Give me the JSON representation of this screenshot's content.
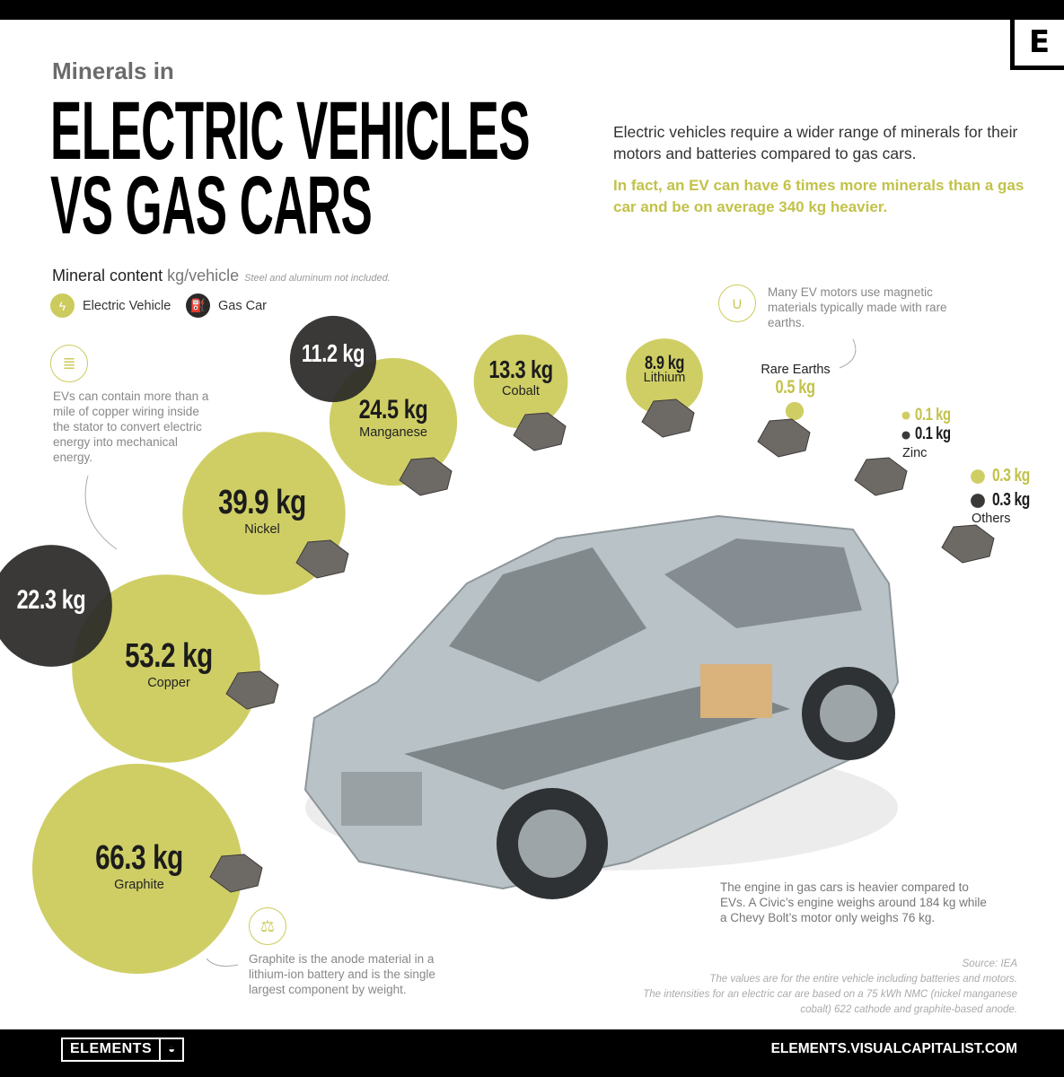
{
  "header": {
    "kicker": "Minerals in",
    "title_line1": "ELECTRIC VEHICLES",
    "title_line2": "VS GAS CARS",
    "logo": "E"
  },
  "intro": {
    "text": "Electric vehicles require a wider range of minerals for their motors and batteries compared to gas cars.",
    "highlight": "In fact, an EV can have 6 times more minerals than a gas car and be on average 340 kg heavier."
  },
  "legend": {
    "title": "Mineral content",
    "unit": "kg/vehicle",
    "note": "Steel and aluminum not included.",
    "ev_label": "Electric Vehicle",
    "gas_label": "Gas Car",
    "ev_icon": "lightning-icon",
    "gas_icon": "fuel-pump-icon"
  },
  "notes": {
    "copper": "EVs can contain more than a mile of copper wiring inside the stator to convert electric energy into mechanical energy.",
    "rare_earths": "Many EV motors use magnetic materials typically made with rare earths.",
    "graphite": "Graphite is the anode material in a lithium-ion battery and is the single largest component by weight.",
    "engine": "The engine in gas cars is heavier compared to EVs. A Civic’s engine weighs around 184 kg while a Chevy Bolt’s motor only weighs 76 kg."
  },
  "source": {
    "line1": "Source: IEA",
    "line2": "The values are for the entire vehicle including batteries and motors.",
    "line3": "The intensities for an electric car are based on a 75 kWh NMC (nickel manganese cobalt) 622 cathode and graphite-based anode."
  },
  "footer": {
    "brand": "ELEMENTS",
    "url": "ELEMENTS.VISUALCAPITALIST.COM"
  },
  "colors": {
    "ev": "#cccb5d",
    "gas": "#2b2a29",
    "background": "#ffffff",
    "footer": "#000000"
  },
  "chart_data": {
    "type": "bubble",
    "unit": "kg",
    "size_encoding": "area",
    "minerals": [
      {
        "name": "Graphite",
        "ev": 66.3,
        "gas": null
      },
      {
        "name": "Copper",
        "ev": 53.2,
        "gas": 22.3
      },
      {
        "name": "Nickel",
        "ev": 39.9,
        "gas": null
      },
      {
        "name": "Manganese",
        "ev": 24.5,
        "gas": 11.2
      },
      {
        "name": "Cobalt",
        "ev": 13.3,
        "gas": null
      },
      {
        "name": "Lithium",
        "ev": 8.9,
        "gas": null
      },
      {
        "name": "Rare Earths",
        "ev": 0.5,
        "gas": null
      },
      {
        "name": "Zinc",
        "ev": 0.1,
        "gas": 0.1
      },
      {
        "name": "Others",
        "ev": 0.3,
        "gas": 0.3
      }
    ]
  }
}
